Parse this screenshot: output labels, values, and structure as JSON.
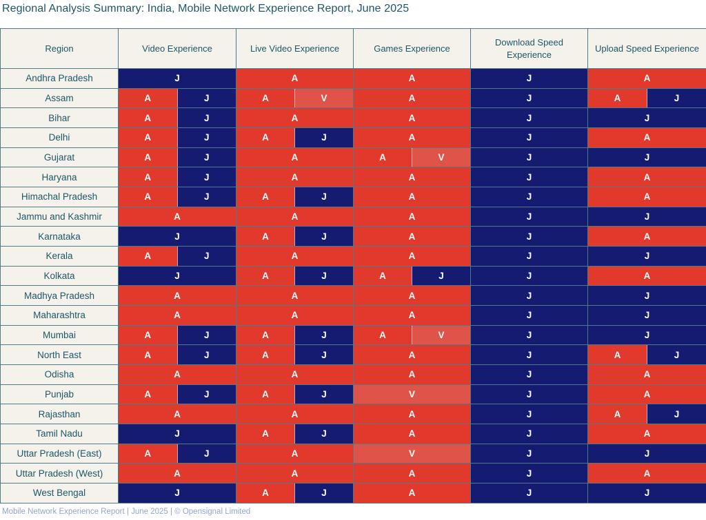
{
  "footer": "Mobile Network Experience Report | June 2025 | © Opensignal Limited",
  "colors": {
    "border": "#4e7b8a",
    "header_bg": "#f5f2ec",
    "header_text": "#1d5666",
    "title_text": "#1d5666",
    "footer_text": "#93a3cd",
    "letter_text": "#ffffff"
  },
  "chart_data": {
    "type": "table",
    "title": "Regional Analysis Summary: India, Mobile Network Experience Report, June 2025",
    "columns": [
      "Region",
      "Video Experience",
      "Live Video Experience",
      "Games Experience",
      "Download Speed Experience",
      "Upload Speed Experience"
    ],
    "column_keys": [
      "video",
      "live_video",
      "games",
      "download",
      "upload"
    ],
    "cell_colors": {
      "A": "#e2392d",
      "J": "#151b70",
      "V": "#df5348"
    },
    "rows": [
      {
        "region": "Andhra Pradesh",
        "video": [
          "J"
        ],
        "live_video": [
          "A"
        ],
        "games": [
          "A"
        ],
        "download": [
          "J"
        ],
        "upload": [
          "A"
        ]
      },
      {
        "region": "Assam",
        "video": [
          "A",
          "J"
        ],
        "live_video": [
          "A",
          "V"
        ],
        "games": [
          "A"
        ],
        "download": [
          "J"
        ],
        "upload": [
          "A",
          "J"
        ]
      },
      {
        "region": "Bihar",
        "video": [
          "A",
          "J"
        ],
        "live_video": [
          "A"
        ],
        "games": [
          "A"
        ],
        "download": [
          "J"
        ],
        "upload": [
          "J"
        ]
      },
      {
        "region": "Delhi",
        "video": [
          "A",
          "J"
        ],
        "live_video": [
          "A",
          "J"
        ],
        "games": [
          "A"
        ],
        "download": [
          "J"
        ],
        "upload": [
          "A"
        ]
      },
      {
        "region": "Gujarat",
        "video": [
          "A",
          "J"
        ],
        "live_video": [
          "A"
        ],
        "games": [
          "A",
          "V"
        ],
        "download": [
          "J"
        ],
        "upload": [
          "J"
        ]
      },
      {
        "region": "Haryana",
        "video": [
          "A",
          "J"
        ],
        "live_video": [
          "A"
        ],
        "games": [
          "A"
        ],
        "download": [
          "J"
        ],
        "upload": [
          "A"
        ]
      },
      {
        "region": "Himachal Pradesh",
        "video": [
          "A",
          "J"
        ],
        "live_video": [
          "A",
          "J"
        ],
        "games": [
          "A"
        ],
        "download": [
          "J"
        ],
        "upload": [
          "A"
        ]
      },
      {
        "region": "Jammu and Kashmir",
        "video": [
          "A"
        ],
        "live_video": [
          "A"
        ],
        "games": [
          "A"
        ],
        "download": [
          "J"
        ],
        "upload": [
          "J"
        ]
      },
      {
        "region": "Karnataka",
        "video": [
          "J"
        ],
        "live_video": [
          "A",
          "J"
        ],
        "games": [
          "A"
        ],
        "download": [
          "J"
        ],
        "upload": [
          "A"
        ]
      },
      {
        "region": "Kerala",
        "video": [
          "A",
          "J"
        ],
        "live_video": [
          "A"
        ],
        "games": [
          "A"
        ],
        "download": [
          "J"
        ],
        "upload": [
          "J"
        ]
      },
      {
        "region": "Kolkata",
        "video": [
          "J"
        ],
        "live_video": [
          "A",
          "J"
        ],
        "games": [
          "A",
          "J"
        ],
        "download": [
          "J"
        ],
        "upload": [
          "A"
        ]
      },
      {
        "region": "Madhya Pradesh",
        "video": [
          "A"
        ],
        "live_video": [
          "A"
        ],
        "games": [
          "A"
        ],
        "download": [
          "J"
        ],
        "upload": [
          "J"
        ]
      },
      {
        "region": "Maharashtra",
        "video": [
          "A"
        ],
        "live_video": [
          "A"
        ],
        "games": [
          "A"
        ],
        "download": [
          "J"
        ],
        "upload": [
          "J"
        ]
      },
      {
        "region": "Mumbai",
        "video": [
          "A",
          "J"
        ],
        "live_video": [
          "A",
          "J"
        ],
        "games": [
          "A",
          "V"
        ],
        "download": [
          "J"
        ],
        "upload": [
          "J"
        ]
      },
      {
        "region": "North East",
        "video": [
          "A",
          "J"
        ],
        "live_video": [
          "A",
          "J"
        ],
        "games": [
          "A"
        ],
        "download": [
          "J"
        ],
        "upload": [
          "A",
          "J"
        ]
      },
      {
        "region": "Odisha",
        "video": [
          "A"
        ],
        "live_video": [
          "A"
        ],
        "games": [
          "A"
        ],
        "download": [
          "J"
        ],
        "upload": [
          "A"
        ]
      },
      {
        "region": "Punjab",
        "video": [
          "A",
          "J"
        ],
        "live_video": [
          "A",
          "J"
        ],
        "games": [
          "V"
        ],
        "download": [
          "J"
        ],
        "upload": [
          "A"
        ]
      },
      {
        "region": "Rajasthan",
        "video": [
          "A"
        ],
        "live_video": [
          "A"
        ],
        "games": [
          "A"
        ],
        "download": [
          "J"
        ],
        "upload": [
          "A",
          "J"
        ]
      },
      {
        "region": "Tamil Nadu",
        "video": [
          "J"
        ],
        "live_video": [
          "A",
          "J"
        ],
        "games": [
          "A"
        ],
        "download": [
          "J"
        ],
        "upload": [
          "A"
        ]
      },
      {
        "region": "Uttar Pradesh (East)",
        "video": [
          "A",
          "J"
        ],
        "live_video": [
          "A"
        ],
        "games": [
          "V"
        ],
        "download": [
          "J"
        ],
        "upload": [
          "J"
        ]
      },
      {
        "region": "Uttar Pradesh (West)",
        "video": [
          "A"
        ],
        "live_video": [
          "A"
        ],
        "games": [
          "A"
        ],
        "download": [
          "J"
        ],
        "upload": [
          "A"
        ]
      },
      {
        "region": "West Bengal",
        "video": [
          "J"
        ],
        "live_video": [
          "A",
          "J"
        ],
        "games": [
          "A"
        ],
        "download": [
          "J"
        ],
        "upload": [
          "J"
        ]
      }
    ]
  }
}
